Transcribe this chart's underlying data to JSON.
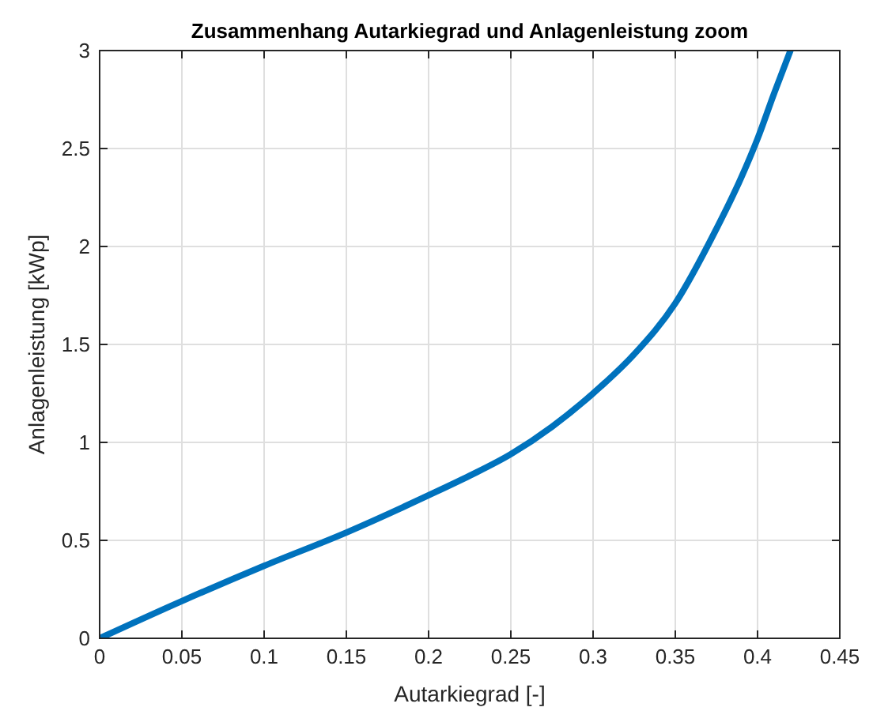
{
  "chart_data": {
    "type": "line",
    "title": "Zusammenhang Autarkiegrad und Anlagenleistung zoom",
    "xlabel": "Autarkiegrad [-]",
    "ylabel": "Anlagenleistung [kWp]",
    "x": [
      0,
      0.05,
      0.1,
      0.15,
      0.2,
      0.225,
      0.25,
      0.275,
      0.3,
      0.325,
      0.35,
      0.375,
      0.39,
      0.4,
      0.41,
      0.42
    ],
    "series": [
      {
        "color": "#0072bd",
        "values": [
          0,
          0.19,
          0.37,
          0.54,
          0.73,
          0.83,
          0.94,
          1.08,
          1.25,
          1.45,
          1.71,
          2.09,
          2.35,
          2.55,
          2.78,
          3.0
        ]
      }
    ],
    "xlim": [
      0,
      0.45
    ],
    "xticks": [
      0,
      0.05,
      0.1,
      0.15,
      0.2,
      0.25,
      0.3,
      0.35,
      0.4,
      0.45
    ],
    "ylim": [
      0,
      3
    ],
    "yticks": [
      0,
      0.5,
      1,
      1.5,
      2,
      2.5,
      3
    ],
    "grid": true,
    "marker": "none",
    "line_style": "solid"
  }
}
